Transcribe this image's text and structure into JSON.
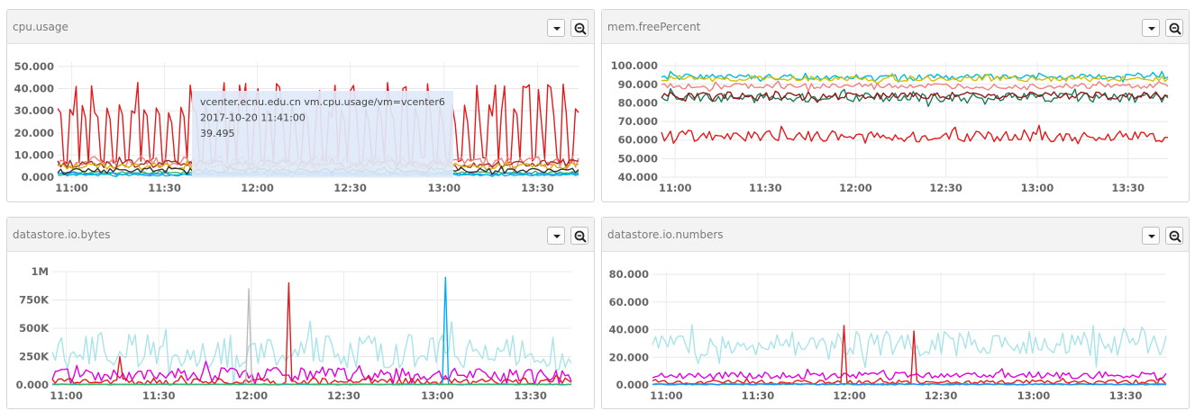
{
  "panels": [
    {
      "title": "cpu.usage",
      "menu_icon": "caret-down-icon",
      "zoom_icon": "zoom-out-icon",
      "chart_data": {
        "type": "line",
        "x_ticks": [
          "11:00",
          "11:30",
          "12:00",
          "12:30",
          "13:00",
          "13:30"
        ],
        "y_ticks": [
          "0.000",
          "10.000",
          "20.000",
          "30.000",
          "40.000",
          "50.000"
        ],
        "ylim": [
          0,
          52
        ],
        "grid": true,
        "series": [
          {
            "color": "#e31a1c",
            "pattern": "spike",
            "base": 6,
            "peak": 33,
            "period": 4
          },
          {
            "color": "#f08080",
            "pattern": "noise",
            "base": 7,
            "amp": 5
          },
          {
            "color": "#a52a2a",
            "pattern": "noise",
            "base": 6,
            "amp": 4
          },
          {
            "color": "#d4b300",
            "pattern": "noise",
            "base": 5,
            "amp": 3
          },
          {
            "color": "#3cb371",
            "pattern": "noise",
            "base": 2,
            "amp": 1
          },
          {
            "color": "#1e90ff",
            "pattern": "noise",
            "base": 1.5,
            "amp": 1
          },
          {
            "color": "#00bcd4",
            "pattern": "noise",
            "base": 1,
            "amp": 0.8
          },
          {
            "color": "#333333",
            "pattern": "noise",
            "base": 3,
            "amp": 2
          }
        ],
        "tooltip": {
          "line1": "vcenter.ecnu.edu.cn vm.cpu.usage/vm=vcenter6",
          "line2": "2017-10-20 11:41:00",
          "line3": "39.495"
        }
      }
    },
    {
      "title": "mem.freePercent",
      "menu_icon": "caret-down-icon",
      "zoom_icon": "zoom-out-icon",
      "chart_data": {
        "type": "line",
        "x_ticks": [
          "11:00",
          "11:30",
          "12:00",
          "12:30",
          "13:00",
          "13:30"
        ],
        "y_ticks": [
          "40.000",
          "50.000",
          "60.000",
          "70.000",
          "80.000",
          "90.000",
          "100.000"
        ],
        "ylim": [
          40,
          102
        ],
        "grid": true,
        "series": [
          {
            "color": "#00bcd4",
            "pattern": "noise",
            "base": 94,
            "amp": 3
          },
          {
            "color": "#d4c000",
            "pattern": "noise",
            "base": 93,
            "amp": 3
          },
          {
            "color": "#f08080",
            "pattern": "noise",
            "base": 89,
            "amp": 3
          },
          {
            "color": "#1b7a5a",
            "pattern": "noise",
            "base": 83,
            "amp": 5
          },
          {
            "color": "#8b1a1a",
            "pattern": "noise",
            "base": 84,
            "amp": 4
          },
          {
            "color": "#e31a1c",
            "pattern": "noise",
            "base": 62,
            "amp": 6
          }
        ]
      }
    },
    {
      "title": "datastore.io.bytes",
      "menu_icon": "caret-down-icon",
      "zoom_icon": "zoom-out-icon",
      "chart_data": {
        "type": "line",
        "x_ticks": [
          "11:00",
          "11:30",
          "12:00",
          "12:30",
          "13:00",
          "13:30"
        ],
        "y_ticks": [
          "0.000",
          "250K",
          "500K",
          "750K",
          "1M"
        ],
        "ylim": [
          0,
          1000000
        ],
        "grid": true,
        "series": [
          {
            "color": "#a8e4ea",
            "pattern": "noise",
            "base": 300000,
            "amp": 300000
          },
          {
            "color": "#e000e0",
            "pattern": "noise",
            "base": 90000,
            "amp": 120000
          },
          {
            "color": "#e31a1c",
            "pattern": "noise",
            "base": 30000,
            "amp": 60000,
            "spikes": [
              [
                0.455,
                900000
              ],
              [
                0.13,
                250000
              ]
            ]
          },
          {
            "color": "#bbbbbb",
            "pattern": "noise",
            "base": 5000,
            "amp": 5000,
            "spikes": [
              [
                0.38,
                850000
              ]
            ]
          },
          {
            "color": "#00aaff",
            "pattern": "noise",
            "base": 5000,
            "amp": 5000,
            "spikes": [
              [
                0.756,
                950000
              ]
            ]
          },
          {
            "color": "#3cb371",
            "pattern": "noise",
            "base": 5000,
            "amp": 8000
          }
        ]
      }
    },
    {
      "title": "datastore.io.numbers",
      "menu_icon": "caret-down-icon",
      "zoom_icon": "zoom-out-icon",
      "chart_data": {
        "type": "line",
        "x_ticks": [
          "11:00",
          "11:30",
          "12:00",
          "12:30",
          "13:00",
          "13:30"
        ],
        "y_ticks": [
          "0.000",
          "20.000",
          "40.000",
          "60.000",
          "80.000"
        ],
        "ylim": [
          0,
          82000
        ],
        "grid": true,
        "series": [
          {
            "color": "#a8e4ea",
            "pattern": "noise",
            "base": 30000,
            "amp": 18000
          },
          {
            "color": "#e000e0",
            "pattern": "noise",
            "base": 7000,
            "amp": 5000
          },
          {
            "color": "#e31a1c",
            "pattern": "noise",
            "base": 2000,
            "amp": 3000,
            "spikes": [
              [
                0.375,
                43000
              ],
              [
                0.51,
                39000
              ]
            ]
          },
          {
            "color": "#3cb371",
            "pattern": "noise",
            "base": 500,
            "amp": 1000
          },
          {
            "color": "#1e90ff",
            "pattern": "noise",
            "base": 500,
            "amp": 800
          }
        ]
      }
    }
  ]
}
